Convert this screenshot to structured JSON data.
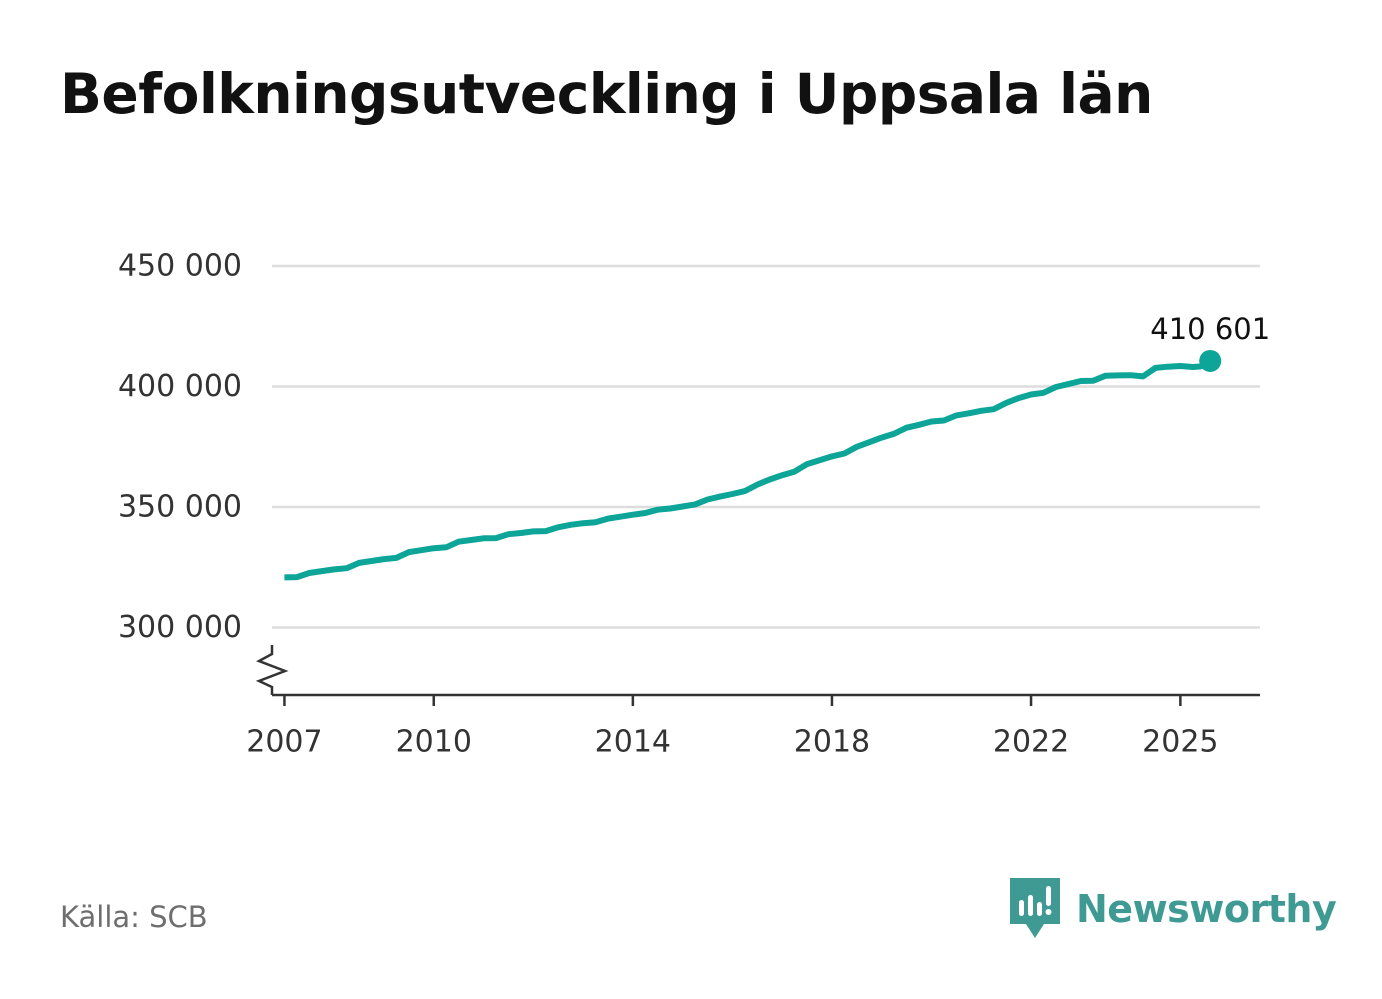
{
  "title": "Befolkningsutveckling i Uppsala län",
  "source": "Källa: SCB",
  "brand": {
    "name": "Newsworthy",
    "logo_icon": "newsworthy-bar-chart-icon",
    "color": "#3e9a92"
  },
  "chart_data": {
    "type": "line",
    "title": "Befolkningsutveckling i Uppsala län",
    "xlabel": "",
    "ylabel": "",
    "x_ticks": [
      2007,
      2010,
      2014,
      2018,
      2022,
      2025
    ],
    "x_tick_labels": [
      "2007",
      "2010",
      "2014",
      "2018",
      "2022",
      "2025"
    ],
    "xlim": [
      2006.75,
      2026.6
    ],
    "y_ticks": [
      300000,
      350000,
      400000,
      450000
    ],
    "y_tick_labels": [
      "300 000",
      "350 000",
      "400 000",
      "450 000"
    ],
    "ylim": [
      272000,
      450000
    ],
    "axis_break": true,
    "grid": true,
    "line_color": "#0da597",
    "end_label": "410 601",
    "series": [
      {
        "name": "Befolkning",
        "x": [
          2007.0,
          2007.25,
          2007.5,
          2007.75,
          2008.0,
          2008.25,
          2008.5,
          2008.75,
          2009.0,
          2009.25,
          2009.5,
          2009.75,
          2010.0,
          2010.25,
          2010.5,
          2010.75,
          2011.0,
          2011.25,
          2011.5,
          2011.75,
          2012.0,
          2012.25,
          2012.5,
          2012.75,
          2013.0,
          2013.25,
          2013.5,
          2013.75,
          2014.0,
          2014.25,
          2014.5,
          2014.75,
          2015.0,
          2015.25,
          2015.5,
          2015.75,
          2016.0,
          2016.25,
          2016.5,
          2016.75,
          2017.0,
          2017.25,
          2017.5,
          2017.75,
          2018.0,
          2018.25,
          2018.5,
          2018.75,
          2019.0,
          2019.25,
          2019.5,
          2019.75,
          2020.0,
          2020.25,
          2020.5,
          2020.75,
          2021.0,
          2021.25,
          2021.5,
          2021.75,
          2022.0,
          2022.25,
          2022.5,
          2022.75,
          2023.0,
          2023.25,
          2023.5,
          2023.75,
          2024.0,
          2024.25,
          2024.5,
          2024.75,
          2025.0,
          2025.25,
          2025.4,
          2025.6
        ],
        "values": [
          320800,
          320900,
          322600,
          323400,
          324100,
          324600,
          326800,
          327600,
          328400,
          328900,
          331300,
          332100,
          332900,
          333300,
          335600,
          336300,
          337000,
          337100,
          338700,
          339200,
          339900,
          340000,
          341600,
          342600,
          343300,
          343700,
          345200,
          346000,
          346800,
          347500,
          348900,
          349400,
          350200,
          351100,
          353100,
          354300,
          355400,
          356600,
          359300,
          361400,
          363200,
          364700,
          367800,
          369400,
          371000,
          372200,
          375000,
          376900,
          378800,
          380400,
          382900,
          384100,
          385500,
          385900,
          388000,
          388900,
          389900,
          390600,
          393200,
          395200,
          396700,
          397400,
          399800,
          401000,
          402300,
          402400,
          404500,
          404600,
          404700,
          404200,
          407700,
          408200,
          408500,
          408100,
          408300,
          410601
        ]
      }
    ]
  }
}
